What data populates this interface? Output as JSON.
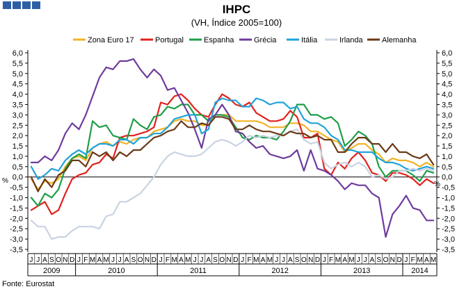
{
  "chart_data": {
    "type": "line",
    "title": "IHPC",
    "subtitle": "(VH, Índice 2005=100)",
    "source": "Fonte: Eurostat",
    "ylim": [
      -3.5,
      6.0
    ],
    "yticks": [
      "6,0",
      "5,5",
      "5,0",
      "4,5",
      "4,0",
      "3,5",
      "3,0",
      "2,5",
      "2,0",
      "1,5",
      "1,0",
      "0,5",
      "0,0",
      "-0,5",
      "-1,0",
      "-1,5",
      "-2,0",
      "-2,5",
      "-3,0",
      "-3,5"
    ],
    "ytick_values": [
      6,
      5.5,
      5,
      4.5,
      4,
      3.5,
      3,
      2.5,
      2,
      1.5,
      1,
      0.5,
      0,
      -0.5,
      -1,
      -1.5,
      -2,
      -2.5,
      -3,
      -3.5
    ],
    "ylabel_left": "%",
    "ylabel_right": "%",
    "grid": false,
    "legend_position": "top",
    "month_labels": [
      "J",
      "J",
      "A",
      "S",
      "O",
      "N",
      "D",
      "J",
      "F",
      "M",
      "A",
      "M",
      "J",
      "J",
      "A",
      "S",
      "O",
      "N",
      "D",
      "J",
      "F",
      "M",
      "A",
      "M",
      "J",
      "J",
      "A",
      "S",
      "O",
      "N",
      "D",
      "J",
      "F",
      "M",
      "A",
      "M",
      "J",
      "J",
      "A",
      "S",
      "O",
      "N",
      "D",
      "J",
      "F",
      "M",
      "A",
      "M",
      "J",
      "J",
      "A",
      "S",
      "O",
      "N",
      "D",
      "J",
      "F",
      "M",
      "A",
      "M"
    ],
    "years": [
      {
        "label": "2009",
        "start": 0,
        "count": 7
      },
      {
        "label": "2010",
        "start": 7,
        "count": 12
      },
      {
        "label": "2011",
        "start": 19,
        "count": 12
      },
      {
        "label": "2012",
        "start": 31,
        "count": 12
      },
      {
        "label": "2013",
        "start": 43,
        "count": 12
      },
      {
        "label": "2014",
        "start": 55,
        "count": 5
      }
    ],
    "series": [
      {
        "name": "Zona Euro 17",
        "color": "#F2B324",
        "values": [
          -0.1,
          -0.6,
          -0.2,
          -0.3,
          -0.1,
          0.5,
          0.9,
          1.0,
          0.8,
          1.4,
          1.6,
          1.7,
          1.5,
          1.7,
          1.6,
          1.8,
          1.9,
          1.9,
          2.2,
          2.3,
          2.4,
          2.7,
          2.8,
          2.7,
          2.7,
          2.5,
          2.5,
          3.0,
          3.0,
          3.0,
          2.7,
          2.7,
          2.7,
          2.7,
          2.6,
          2.4,
          2.4,
          2.4,
          2.6,
          2.6,
          2.5,
          2.2,
          2.2,
          2.0,
          1.8,
          1.7,
          1.2,
          1.4,
          1.6,
          1.6,
          1.3,
          1.1,
          0.7,
          0.9,
          0.8,
          0.8,
          0.7,
          0.5,
          0.7,
          0.5
        ]
      },
      {
        "name": "Portugal",
        "color": "#E2211C",
        "values": [
          -1.6,
          -1.4,
          -1.2,
          -1.8,
          -1.6,
          -0.8,
          -0.1,
          0.1,
          0.2,
          0.6,
          0.7,
          1.1,
          0.9,
          1.9,
          2.0,
          2.0,
          2.1,
          2.2,
          2.4,
          3.6,
          3.5,
          3.9,
          4.0,
          3.7,
          3.3,
          3.0,
          2.9,
          3.5,
          4.0,
          3.8,
          3.5,
          3.4,
          3.6,
          3.1,
          2.9,
          2.7,
          2.7,
          2.8,
          3.2,
          2.9,
          1.9,
          1.9,
          2.1,
          0.4,
          0.1,
          0.7,
          0.4,
          0.9,
          1.2,
          0.8,
          0.2,
          0.1,
          -0.2,
          0.2,
          0.2,
          0.1,
          -0.1,
          -0.4,
          -0.1,
          -0.3
        ]
      },
      {
        "name": "Espanha",
        "color": "#1E9E48",
        "values": [
          -1.0,
          -1.4,
          -0.8,
          -1.0,
          -0.6,
          0.4,
          0.9,
          1.1,
          0.9,
          2.7,
          2.4,
          2.5,
          2.0,
          1.9,
          1.8,
          2.8,
          2.5,
          2.3,
          2.9,
          3.0,
          3.4,
          3.3,
          3.5,
          3.5,
          3.0,
          3.0,
          2.7,
          3.0,
          3.0,
          2.9,
          2.4,
          1.9,
          1.8,
          2.0,
          1.9,
          1.9,
          1.8,
          2.2,
          2.7,
          3.5,
          3.5,
          3.0,
          3.0,
          2.8,
          2.9,
          2.6,
          1.5,
          1.8,
          2.2,
          2.0,
          1.6,
          0.5,
          0.0,
          0.3,
          0.3,
          0.3,
          0.1,
          -0.2,
          0.3,
          0.2
        ]
      },
      {
        "name": "Grécia",
        "color": "#6E3B9E",
        "values": [
          0.7,
          0.7,
          1.0,
          0.8,
          1.3,
          2.1,
          2.6,
          2.3,
          3.0,
          3.9,
          4.8,
          5.3,
          5.2,
          5.6,
          5.6,
          5.7,
          5.2,
          4.8,
          5.2,
          4.9,
          4.2,
          4.3,
          3.7,
          3.1,
          2.3,
          1.4,
          2.8,
          3.0,
          3.5,
          3.0,
          2.2,
          2.1,
          1.7,
          1.4,
          1.5,
          1.1,
          1.0,
          0.9,
          1.0,
          1.3,
          0.3,
          1.3,
          0.4,
          0.3,
          0.1,
          -0.2,
          -0.6,
          -0.3,
          -0.4,
          -0.4,
          -0.8,
          -1.0,
          -2.9,
          -1.8,
          -1.4,
          -0.9,
          -1.5,
          -1.6,
          -2.1,
          -2.1
        ]
      },
      {
        "name": "Itália",
        "color": "#1FA3DB",
        "values": [
          0.5,
          -0.1,
          0.1,
          0.4,
          0.3,
          0.8,
          1.1,
          1.3,
          1.1,
          1.4,
          1.6,
          1.6,
          1.5,
          1.8,
          1.8,
          1.6,
          1.9,
          1.9,
          2.1,
          2.1,
          2.4,
          2.8,
          2.9,
          3.0,
          3.0,
          2.1,
          2.3,
          3.6,
          3.8,
          3.7,
          3.7,
          3.4,
          3.4,
          3.8,
          3.7,
          3.5,
          3.6,
          3.6,
          3.3,
          3.4,
          2.8,
          2.6,
          2.6,
          2.4,
          2.0,
          1.8,
          1.3,
          1.3,
          1.2,
          1.2,
          1.2,
          0.9,
          0.7,
          0.7,
          0.6,
          0.4,
          0.3,
          0.4,
          0.5,
          0.4
        ]
      },
      {
        "name": "Irlanda",
        "color": "#C9D3E2",
        "values": [
          -2.1,
          -2.4,
          -2.4,
          -3.0,
          -2.9,
          -2.9,
          -2.6,
          -2.4,
          -2.4,
          -2.4,
          -2.5,
          -1.9,
          -1.8,
          -1.2,
          -1.2,
          -1.0,
          -0.8,
          -0.4,
          0.0,
          0.6,
          1.0,
          1.2,
          1.1,
          1.0,
          1.0,
          1.1,
          1.4,
          1.7,
          1.8,
          1.7,
          1.5,
          1.7,
          2.0,
          1.9,
          2.0,
          1.9,
          2.0,
          2.0,
          2.2,
          2.3,
          1.8,
          1.6,
          1.7,
          0.7,
          0.4,
          0.6,
          0.7,
          0.5,
          0.7,
          0.5,
          0.0,
          0.1,
          -0.1,
          0.0,
          0.3,
          0.3,
          0.4,
          0.3,
          0.4,
          0.3
        ]
      },
      {
        "name": "Alemanha",
        "color": "#6B3A17",
        "values": [
          0.0,
          -0.7,
          -0.1,
          -0.5,
          0.1,
          0.3,
          0.8,
          0.8,
          0.5,
          1.2,
          1.0,
          1.2,
          0.8,
          1.2,
          1.0,
          1.3,
          1.3,
          1.6,
          1.9,
          2.0,
          2.2,
          2.3,
          2.7,
          2.4,
          2.4,
          2.6,
          2.5,
          2.9,
          2.9,
          2.8,
          2.3,
          2.3,
          2.5,
          2.3,
          2.2,
          2.2,
          2.1,
          2.0,
          2.2,
          2.1,
          2.1,
          1.9,
          2.0,
          1.8,
          1.8,
          1.2,
          1.2,
          1.6,
          1.9,
          1.9,
          1.6,
          1.6,
          1.2,
          1.6,
          1.2,
          1.2,
          1.0,
          0.9,
          1.1,
          0.6
        ]
      }
    ]
  }
}
